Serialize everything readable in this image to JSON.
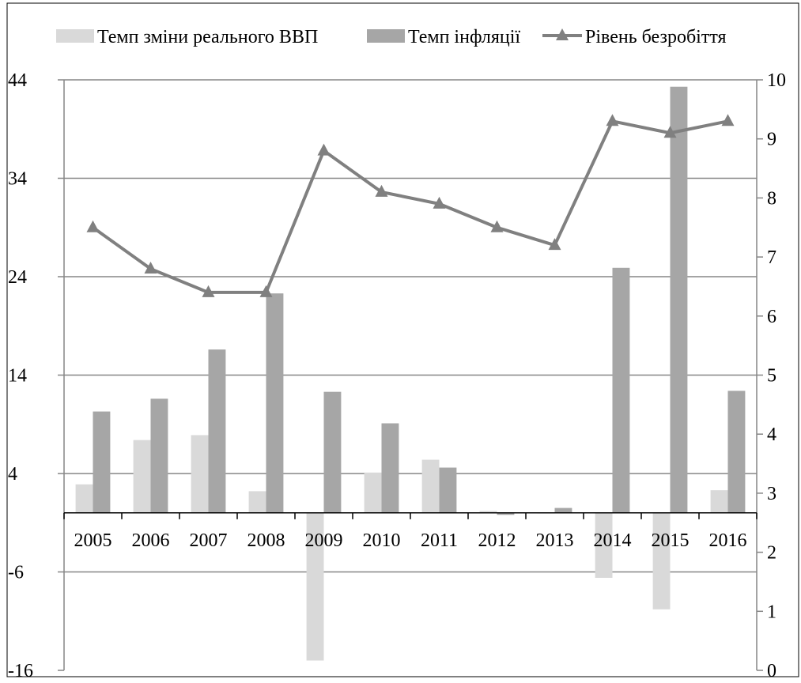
{
  "colors": {
    "gdp_bar": "#d9d9d9",
    "inflation_bar": "#a6a6a6",
    "unemployment_line": "#808080",
    "gridline": "#868686",
    "axis": "#868686",
    "frame": "#000000"
  },
  "chart_data": {
    "type": "bar",
    "categories": [
      "2005",
      "2006",
      "2007",
      "2008",
      "2009",
      "2010",
      "2011",
      "2012",
      "2013",
      "2014",
      "2015",
      "2016"
    ],
    "series": [
      {
        "name": "Темп зміни реального ВВП",
        "type": "bar",
        "axis": "left",
        "values": [
          2.9,
          7.4,
          7.9,
          2.2,
          -15.0,
          4.1,
          5.4,
          0.2,
          0.0,
          -6.6,
          -9.8,
          2.3
        ]
      },
      {
        "name": "Темп інфляції",
        "type": "bar",
        "axis": "left",
        "values": [
          10.3,
          11.6,
          16.6,
          22.3,
          12.3,
          9.1,
          4.6,
          -0.2,
          0.5,
          24.9,
          43.3,
          12.4
        ]
      },
      {
        "name": "Рівень безробіття",
        "type": "line",
        "axis": "right",
        "marker": "triangle",
        "values": [
          7.5,
          6.8,
          6.4,
          6.4,
          8.8,
          8.1,
          7.9,
          7.5,
          7.2,
          9.3,
          9.1,
          9.3
        ]
      }
    ],
    "y_left": {
      "min": -16,
      "max": 44,
      "ticks": [
        "44",
        "34",
        "24",
        "14",
        "4",
        "-6",
        "-16"
      ]
    },
    "y_right": {
      "min": 0,
      "max": 10,
      "ticks": [
        "10",
        "9",
        "8",
        "7",
        "6",
        "5",
        "4",
        "3",
        "2",
        "1",
        "0"
      ]
    },
    "grid": true,
    "legend_position": "top"
  }
}
